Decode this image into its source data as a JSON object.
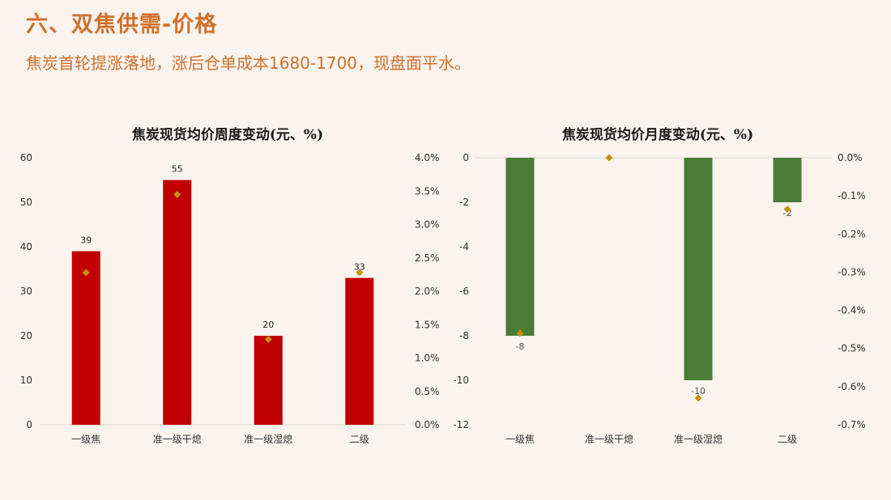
{
  "slide": {
    "title": "六、双焦供需-价格",
    "subtitle": "焦炭首轮提涨落地，涨后仓单成本1680-1700，现盘面平水。"
  },
  "colors": {
    "title": "#d0702b",
    "bar_left": "#c00000",
    "bar_right": "#4a7c36",
    "marker": "#c8900a",
    "background": "#faf3ee"
  },
  "chart_data": [
    {
      "type": "bar",
      "title": "焦炭现货均价周度变动(元、%)",
      "categories": [
        "一级焦",
        "准一级干熄",
        "准一级湿熄",
        "二级"
      ],
      "series": [
        {
          "axis": "left",
          "kind": "bar",
          "values": [
            39,
            55,
            20,
            33
          ],
          "data_labels": [
            "39",
            "55",
            "20",
            "33"
          ]
        },
        {
          "axis": "right",
          "kind": "marker",
          "values": [
            2.28,
            3.45,
            1.28,
            2.28
          ]
        }
      ],
      "ylim_left": [
        0,
        60
      ],
      "yticks_left": [
        "0",
        "10",
        "20",
        "30",
        "40",
        "50",
        "60"
      ],
      "ylim_right": [
        0,
        4.0
      ],
      "yticks_right": [
        "0.0%",
        "0.5%",
        "1.0%",
        "1.5%",
        "2.0%",
        "2.5%",
        "3.0%",
        "3.5%",
        "4.0%"
      ]
    },
    {
      "type": "bar",
      "title": "焦炭现货均价月度变动(元、%)",
      "categories": [
        "一级焦",
        "准一级干熄",
        "准一级湿熄",
        "二级"
      ],
      "series": [
        {
          "axis": "left",
          "kind": "bar",
          "values": [
            -8,
            0,
            -10,
            -2
          ],
          "data_labels": [
            "-8",
            "",
            "-10",
            "-2"
          ]
        },
        {
          "axis": "right",
          "kind": "marker",
          "values": [
            -0.46,
            0.0,
            -0.63,
            -0.135
          ]
        }
      ],
      "ylim_left": [
        -12,
        0
      ],
      "yticks_left": [
        "0",
        "-2",
        "-4",
        "-6",
        "-8",
        "-10",
        "-12"
      ],
      "ylim_right": [
        -0.7,
        0.0
      ],
      "yticks_right": [
        "0.0%",
        "-0.1%",
        "-0.2%",
        "-0.3%",
        "-0.4%",
        "-0.5%",
        "-0.6%",
        "-0.7%"
      ]
    }
  ]
}
